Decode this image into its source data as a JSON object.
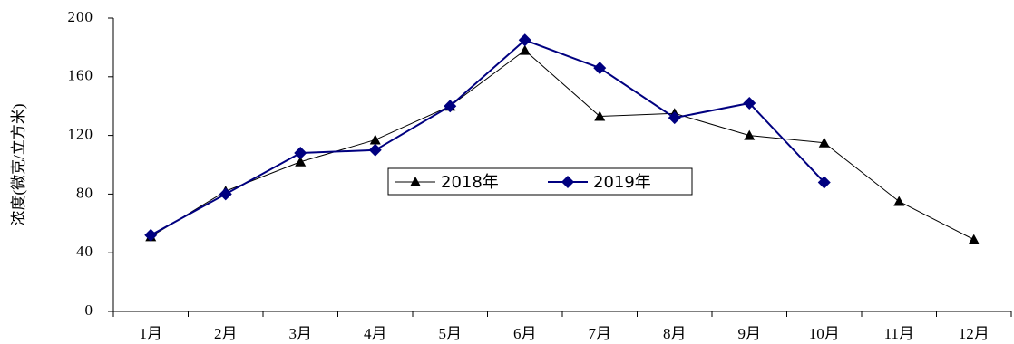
{
  "chart_data": {
    "type": "line",
    "y_label": "浓度(微克/立方米)",
    "categories": [
      "1月",
      "2月",
      "3月",
      "4月",
      "5月",
      "6月",
      "7月",
      "8月",
      "9月",
      "10月",
      "11月",
      "12月"
    ],
    "series": [
      {
        "name": "2018年",
        "color": "#000000",
        "marker": "triangle",
        "values": [
          51,
          82,
          102,
          117,
          140,
          178,
          133,
          135,
          120,
          115,
          75,
          49
        ]
      },
      {
        "name": "2019年",
        "color": "#000080",
        "marker": "diamond",
        "values": [
          52,
          80,
          108,
          110,
          140,
          185,
          166,
          132,
          142,
          88,
          null,
          null
        ]
      }
    ],
    "ylim": [
      0,
      200
    ],
    "yticks": [
      0,
      40,
      80,
      120,
      160,
      200
    ],
    "grid": false,
    "legend": "center"
  }
}
